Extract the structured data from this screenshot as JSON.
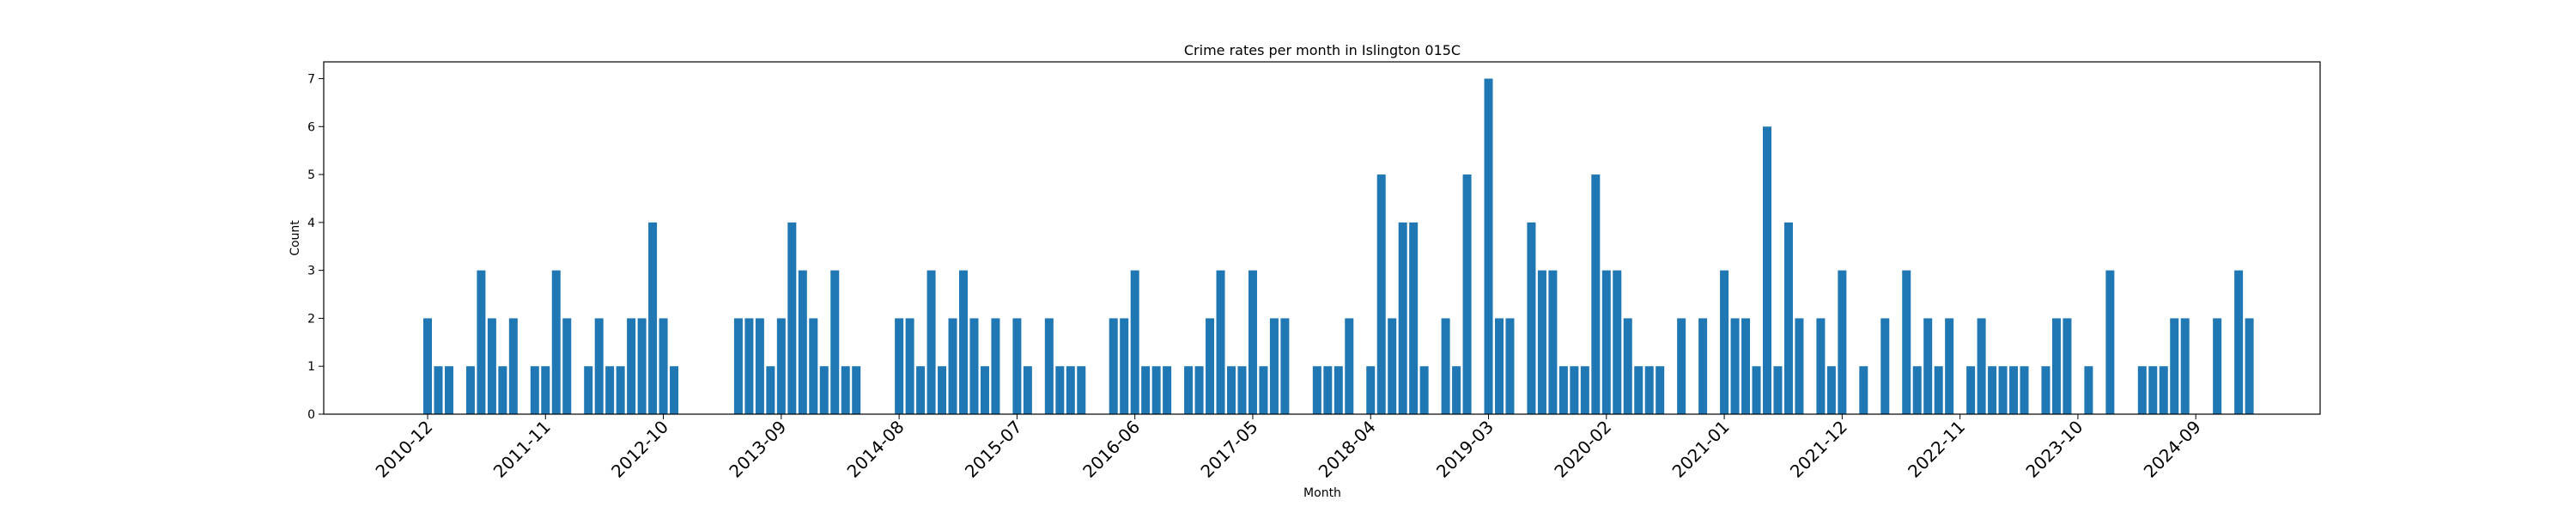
{
  "chart_data": {
    "type": "bar",
    "title": "Crime rates per month in Islington 015C",
    "xlabel": "Month",
    "ylabel": "Count",
    "ylim": [
      0,
      7.35
    ],
    "yticks": [
      0,
      1,
      2,
      3,
      4,
      5,
      6,
      7
    ],
    "xticks": [
      "2010-12",
      "2011-11",
      "2012-10",
      "2013-09",
      "2014-08",
      "2015-07",
      "2016-06",
      "2017-05",
      "2018-04",
      "2019-03",
      "2020-02",
      "2021-01",
      "2021-12",
      "2022-11",
      "2023-10",
      "2024-09"
    ],
    "grid": false,
    "bar_color": "#1f77b4",
    "start_month": "2010-12",
    "values": [
      2,
      1,
      1,
      0,
      1,
      3,
      2,
      1,
      2,
      0,
      1,
      1,
      3,
      2,
      0,
      1,
      2,
      1,
      1,
      2,
      2,
      4,
      2,
      1,
      0,
      0,
      0,
      0,
      0,
      2,
      2,
      2,
      1,
      2,
      4,
      3,
      2,
      1,
      3,
      1,
      1,
      0,
      0,
      0,
      2,
      2,
      1,
      3,
      1,
      2,
      3,
      2,
      1,
      2,
      0,
      2,
      1,
      0,
      2,
      1,
      1,
      1,
      0,
      0,
      2,
      2,
      3,
      1,
      1,
      1,
      0,
      1,
      1,
      2,
      3,
      1,
      1,
      3,
      1,
      2,
      2,
      0,
      0,
      1,
      1,
      1,
      2,
      0,
      1,
      5,
      2,
      4,
      4,
      1,
      0,
      2,
      1,
      5,
      0,
      7,
      2,
      2,
      0,
      4,
      3,
      3,
      1,
      1,
      1,
      5,
      3,
      3,
      2,
      1,
      1,
      1,
      0,
      2,
      0,
      2,
      0,
      3,
      2,
      2,
      1,
      6,
      1,
      4,
      2,
      0,
      2,
      1,
      3,
      0,
      1,
      0,
      2,
      0,
      3,
      1,
      2,
      1,
      2,
      0,
      1,
      2,
      1,
      1,
      1,
      1,
      0,
      1,
      2,
      2,
      0,
      1,
      0,
      3,
      0,
      0,
      1,
      1,
      1,
      2,
      2,
      0,
      0,
      2,
      0,
      3,
      2
    ]
  }
}
